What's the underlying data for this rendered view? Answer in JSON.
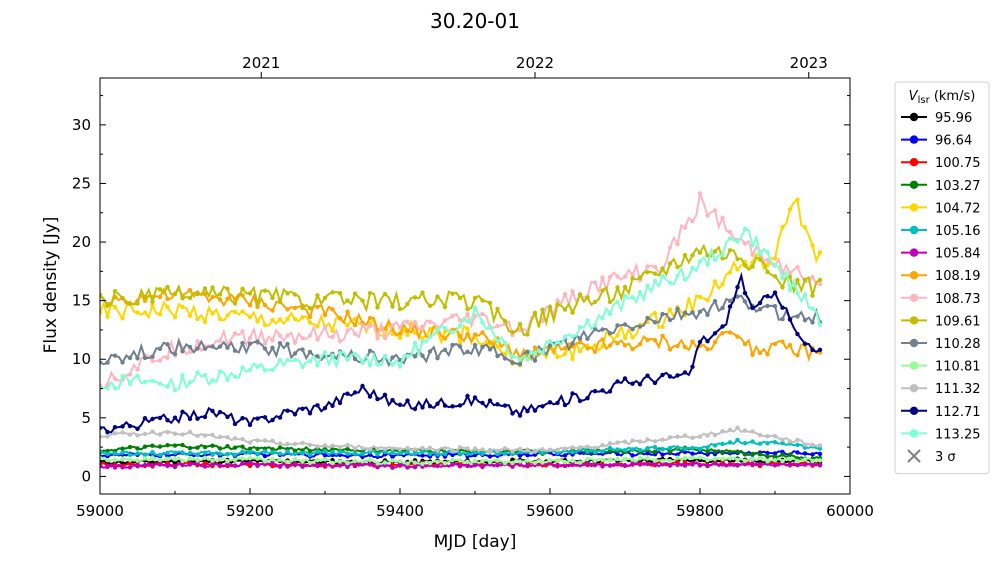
{
  "chart_data": {
    "type": "line",
    "title": "30.20-01",
    "xlabel": "MJD [day]",
    "ylabel": "Flux density [Jy]",
    "xlim": [
      59000,
      60000
    ],
    "ylim": [
      -1.5,
      34
    ],
    "x_ticks": [
      59000,
      59200,
      59400,
      59600,
      59800,
      60000
    ],
    "y_ticks": [
      0,
      5,
      10,
      15,
      20,
      25,
      30
    ],
    "top_axis": {
      "ticks": [
        {
          "label": "2021",
          "mjd": 59215
        },
        {
          "label": "2022",
          "mjd": 59580
        },
        {
          "label": "2023",
          "mjd": 59945
        }
      ]
    },
    "legend": {
      "title_main": "V",
      "title_sub": "lsr",
      "title_rest": " (km/s)",
      "position": "outside-right",
      "threshold_label": "3 σ",
      "threshold_color": "#808080"
    },
    "series": [
      {
        "name": "95.96",
        "color": "#000000",
        "x": [
          59000,
          59200,
          59400,
          59600,
          59800,
          59960
        ],
        "y": [
          1.2,
          1.3,
          1.2,
          1.3,
          1.4,
          1.3
        ]
      },
      {
        "name": "96.64",
        "color": "#0000ff",
        "x": [
          59000,
          59200,
          59400,
          59600,
          59800,
          59960
        ],
        "y": [
          1.8,
          1.9,
          1.8,
          1.9,
          2.0,
          2.0
        ]
      },
      {
        "name": "100.75",
        "color": "#ff0000",
        "x": [
          59000,
          59200,
          59400,
          59600,
          59800,
          59960
        ],
        "y": [
          1.0,
          1.0,
          1.0,
          1.0,
          1.1,
          1.0
        ]
      },
      {
        "name": "103.27",
        "color": "#008000",
        "x": [
          59000,
          59100,
          59200,
          59400,
          59600,
          59800,
          59960
        ],
        "y": [
          2.2,
          2.6,
          2.4,
          2.2,
          2.1,
          2.3,
          1.5
        ]
      },
      {
        "name": "104.72",
        "color": "#ffd700",
        "x": [
          59000,
          59100,
          59200,
          59300,
          59400,
          59500,
          59560,
          59650,
          59750,
          59800,
          59850,
          59900,
          59925,
          59940,
          59960
        ],
        "y": [
          14.0,
          14.2,
          13.5,
          13.0,
          12.5,
          12.0,
          10.0,
          11.0,
          13.5,
          15.0,
          18.0,
          18.5,
          24.0,
          21.0,
          18.5
        ]
      },
      {
        "name": "105.16",
        "color": "#00bfbf",
        "x": [
          59000,
          59200,
          59400,
          59600,
          59800,
          59850,
          59960
        ],
        "y": [
          2.0,
          2.0,
          2.0,
          2.1,
          2.5,
          3.0,
          2.5
        ]
      },
      {
        "name": "105.84",
        "color": "#bf00bf",
        "x": [
          59000,
          59200,
          59400,
          59600,
          59800,
          59960
        ],
        "y": [
          0.9,
          1.0,
          0.9,
          1.0,
          1.0,
          1.0
        ]
      },
      {
        "name": "108.19",
        "color": "#ffa500",
        "x": [
          59000,
          59100,
          59200,
          59300,
          59400,
          59500,
          59560,
          59650,
          59750,
          59800,
          59850,
          59870,
          59900,
          59960
        ],
        "y": [
          15.0,
          15.5,
          15.0,
          14.0,
          12.5,
          12.0,
          10.5,
          11.0,
          11.5,
          11.0,
          12.5,
          11.0,
          11.0,
          10.5
        ]
      },
      {
        "name": "108.73",
        "color": "#ffb6c1",
        "x": [
          59000,
          59100,
          59200,
          59300,
          59400,
          59500,
          59560,
          59650,
          59750,
          59800,
          59850,
          59900,
          59960
        ],
        "y": [
          8.0,
          11.0,
          12.0,
          12.0,
          12.5,
          13.5,
          12.5,
          16.0,
          18.0,
          23.5,
          20.0,
          18.5,
          16.0
        ]
      },
      {
        "name": "109.61",
        "color": "#bfbf00",
        "x": [
          59000,
          59100,
          59200,
          59300,
          59400,
          59500,
          59560,
          59600,
          59700,
          59800,
          59850,
          59900,
          59960
        ],
        "y": [
          15.0,
          15.5,
          15.5,
          15.0,
          15.0,
          15.0,
          12.5,
          14.0,
          16.0,
          19.5,
          19.0,
          17.0,
          16.0
        ]
      },
      {
        "name": "110.28",
        "color": "#708090",
        "x": [
          59000,
          59100,
          59200,
          59300,
          59400,
          59500,
          59560,
          59650,
          59750,
          59800,
          59850,
          59900,
          59960
        ],
        "y": [
          10.0,
          11.0,
          11.0,
          10.5,
          10.0,
          11.0,
          10.0,
          12.0,
          13.5,
          14.0,
          15.0,
          14.0,
          13.5
        ]
      },
      {
        "name": "110.81",
        "color": "#98fb98",
        "x": [
          59000,
          59200,
          59400,
          59600,
          59800,
          59960
        ],
        "y": [
          1.5,
          1.4,
          1.2,
          1.3,
          1.5,
          1.4
        ]
      },
      {
        "name": "111.32",
        "color": "#c0c0c0",
        "x": [
          59000,
          59100,
          59200,
          59300,
          59400,
          59600,
          59800,
          59850,
          59960
        ],
        "y": [
          3.5,
          3.8,
          3.0,
          2.6,
          2.4,
          2.2,
          3.5,
          4.0,
          2.6
        ]
      },
      {
        "name": "112.71",
        "color": "#000080",
        "x": [
          59000,
          59100,
          59150,
          59200,
          59250,
          59300,
          59350,
          59400,
          59500,
          59560,
          59650,
          59700,
          59750,
          59785,
          59800,
          59830,
          59855,
          59870,
          59900,
          59930,
          59945,
          59960
        ],
        "y": [
          4.0,
          5.0,
          5.5,
          4.5,
          5.5,
          6.0,
          7.5,
          6.0,
          6.5,
          5.5,
          7.0,
          8.0,
          8.5,
          8.5,
          11.5,
          12.5,
          17.0,
          14.0,
          16.0,
          12.0,
          11.0,
          10.5
        ]
      },
      {
        "name": "113.25",
        "color": "#7fffd4",
        "x": [
          59000,
          59100,
          59200,
          59300,
          59400,
          59500,
          59560,
          59650,
          59750,
          59800,
          59860,
          59900,
          59960
        ],
        "y": [
          8.0,
          8.0,
          9.0,
          10.0,
          10.0,
          14.0,
          10.0,
          13.0,
          16.5,
          18.0,
          21.0,
          18.0,
          13.5
        ]
      }
    ]
  }
}
